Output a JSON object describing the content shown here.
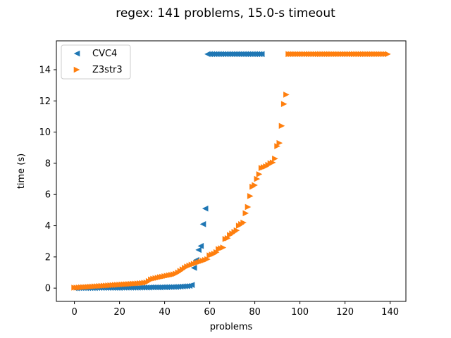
{
  "chart_data": {
    "type": "scatter",
    "title": "regex: 141 problems, 15.0-s timeout",
    "xlabel": "problems",
    "ylabel": "time (s)",
    "xlim": [
      -8,
      147
    ],
    "ylim": [
      -0.85,
      15.85
    ],
    "xticks": [
      0,
      20,
      40,
      60,
      80,
      100,
      120,
      140
    ],
    "yticks": [
      0,
      2,
      4,
      6,
      8,
      10,
      12,
      14
    ],
    "grid": false,
    "legend_position": "upper-left",
    "series": [
      {
        "name": "CVC4",
        "marker": "triangle-left",
        "color": "#1f77b4",
        "points": [
          [
            0,
            0.0
          ],
          [
            1,
            0.0
          ],
          [
            2,
            0.01
          ],
          [
            3,
            0.01
          ],
          [
            4,
            0.01
          ],
          [
            5,
            0.01
          ],
          [
            6,
            0.01
          ],
          [
            7,
            0.01
          ],
          [
            8,
            0.01
          ],
          [
            9,
            0.01
          ],
          [
            10,
            0.02
          ],
          [
            11,
            0.02
          ],
          [
            12,
            0.02
          ],
          [
            13,
            0.02
          ],
          [
            14,
            0.02
          ],
          [
            15,
            0.02
          ],
          [
            16,
            0.02
          ],
          [
            17,
            0.02
          ],
          [
            18,
            0.02
          ],
          [
            19,
            0.02
          ],
          [
            20,
            0.02
          ],
          [
            21,
            0.03
          ],
          [
            22,
            0.03
          ],
          [
            23,
            0.03
          ],
          [
            24,
            0.03
          ],
          [
            25,
            0.03
          ],
          [
            26,
            0.03
          ],
          [
            27,
            0.03
          ],
          [
            28,
            0.03
          ],
          [
            29,
            0.04
          ],
          [
            30,
            0.04
          ],
          [
            31,
            0.04
          ],
          [
            32,
            0.04
          ],
          [
            33,
            0.04
          ],
          [
            34,
            0.05
          ],
          [
            35,
            0.05
          ],
          [
            36,
            0.05
          ],
          [
            37,
            0.05
          ],
          [
            38,
            0.05
          ],
          [
            39,
            0.06
          ],
          [
            40,
            0.06
          ],
          [
            41,
            0.06
          ],
          [
            42,
            0.07
          ],
          [
            43,
            0.07
          ],
          [
            44,
            0.08
          ],
          [
            45,
            0.08
          ],
          [
            46,
            0.09
          ],
          [
            47,
            0.1
          ],
          [
            48,
            0.11
          ],
          [
            49,
            0.12
          ],
          [
            50,
            0.13
          ],
          [
            51,
            0.15
          ],
          [
            52,
            0.2
          ],
          [
            53,
            1.3
          ],
          [
            54,
            1.8
          ],
          [
            55,
            2.45
          ],
          [
            56,
            2.7
          ],
          [
            57,
            4.1
          ],
          [
            58,
            5.1
          ],
          [
            59,
            15.0
          ],
          [
            60,
            15.0
          ],
          [
            61,
            15.0
          ],
          [
            62,
            15.0
          ],
          [
            63,
            15.0
          ],
          [
            64,
            15.0
          ],
          [
            65,
            15.0
          ],
          [
            66,
            15.0
          ],
          [
            67,
            15.0
          ],
          [
            68,
            15.0
          ],
          [
            69,
            15.0
          ],
          [
            70,
            15.0
          ],
          [
            71,
            15.0
          ],
          [
            72,
            15.0
          ],
          [
            73,
            15.0
          ],
          [
            74,
            15.0
          ],
          [
            75,
            15.0
          ],
          [
            76,
            15.0
          ],
          [
            77,
            15.0
          ],
          [
            78,
            15.0
          ],
          [
            79,
            15.0
          ],
          [
            80,
            15.0
          ],
          [
            81,
            15.0
          ],
          [
            82,
            15.0
          ],
          [
            83,
            15.0
          ]
        ]
      },
      {
        "name": "Z3str3",
        "marker": "triangle-right",
        "color": "#ff7f0e",
        "points": [
          [
            0,
            0.03
          ],
          [
            1,
            0.03
          ],
          [
            2,
            0.04
          ],
          [
            3,
            0.05
          ],
          [
            4,
            0.06
          ],
          [
            5,
            0.07
          ],
          [
            6,
            0.08
          ],
          [
            7,
            0.09
          ],
          [
            8,
            0.1
          ],
          [
            9,
            0.11
          ],
          [
            10,
            0.12
          ],
          [
            11,
            0.13
          ],
          [
            12,
            0.14
          ],
          [
            13,
            0.15
          ],
          [
            14,
            0.16
          ],
          [
            15,
            0.17
          ],
          [
            16,
            0.18
          ],
          [
            17,
            0.19
          ],
          [
            18,
            0.2
          ],
          [
            19,
            0.21
          ],
          [
            20,
            0.22
          ],
          [
            21,
            0.23
          ],
          [
            22,
            0.24
          ],
          [
            23,
            0.25
          ],
          [
            24,
            0.26
          ],
          [
            25,
            0.27
          ],
          [
            26,
            0.28
          ],
          [
            27,
            0.29
          ],
          [
            28,
            0.3
          ],
          [
            29,
            0.31
          ],
          [
            30,
            0.32
          ],
          [
            31,
            0.34
          ],
          [
            32,
            0.36
          ],
          [
            33,
            0.45
          ],
          [
            34,
            0.55
          ],
          [
            35,
            0.6
          ],
          [
            36,
            0.63
          ],
          [
            37,
            0.66
          ],
          [
            38,
            0.7
          ],
          [
            39,
            0.73
          ],
          [
            40,
            0.76
          ],
          [
            41,
            0.79
          ],
          [
            42,
            0.82
          ],
          [
            43,
            0.85
          ],
          [
            44,
            0.88
          ],
          [
            45,
            0.92
          ],
          [
            46,
            1.0
          ],
          [
            47,
            1.1
          ],
          [
            48,
            1.2
          ],
          [
            49,
            1.3
          ],
          [
            50,
            1.38
          ],
          [
            51,
            1.44
          ],
          [
            52,
            1.5
          ],
          [
            53,
            1.55
          ],
          [
            54,
            1.6
          ],
          [
            55,
            1.65
          ],
          [
            56,
            1.7
          ],
          [
            57,
            1.75
          ],
          [
            58,
            1.8
          ],
          [
            59,
            1.85
          ],
          [
            60,
            2.1
          ],
          [
            61,
            2.15
          ],
          [
            62,
            2.2
          ],
          [
            63,
            2.3
          ],
          [
            64,
            2.5
          ],
          [
            65,
            2.55
          ],
          [
            66,
            2.6
          ],
          [
            67,
            3.15
          ],
          [
            68,
            3.2
          ],
          [
            69,
            3.4
          ],
          [
            70,
            3.5
          ],
          [
            71,
            3.6
          ],
          [
            72,
            3.7
          ],
          [
            73,
            4.0
          ],
          [
            74,
            4.1
          ],
          [
            75,
            4.2
          ],
          [
            76,
            4.8
          ],
          [
            77,
            5.2
          ],
          [
            78,
            5.9
          ],
          [
            79,
            6.5
          ],
          [
            80,
            6.6
          ],
          [
            81,
            7.0
          ],
          [
            82,
            7.3
          ],
          [
            83,
            7.7
          ],
          [
            84,
            7.75
          ],
          [
            85,
            7.8
          ],
          [
            86,
            7.9
          ],
          [
            87,
            8.0
          ],
          [
            88,
            8.05
          ],
          [
            89,
            8.3
          ],
          [
            90,
            9.1
          ],
          [
            91,
            9.3
          ],
          [
            92,
            10.4
          ],
          [
            93,
            11.8
          ],
          [
            94,
            12.4
          ],
          [
            95,
            15.0
          ],
          [
            96,
            15.0
          ],
          [
            97,
            15.0
          ],
          [
            98,
            15.0
          ],
          [
            99,
            15.0
          ],
          [
            100,
            15.0
          ],
          [
            101,
            15.0
          ],
          [
            102,
            15.0
          ],
          [
            103,
            15.0
          ],
          [
            104,
            15.0
          ],
          [
            105,
            15.0
          ],
          [
            106,
            15.0
          ],
          [
            107,
            15.0
          ],
          [
            108,
            15.0
          ],
          [
            109,
            15.0
          ],
          [
            110,
            15.0
          ],
          [
            111,
            15.0
          ],
          [
            112,
            15.0
          ],
          [
            113,
            15.0
          ],
          [
            114,
            15.0
          ],
          [
            115,
            15.0
          ],
          [
            116,
            15.0
          ],
          [
            117,
            15.0
          ],
          [
            118,
            15.0
          ],
          [
            119,
            15.0
          ],
          [
            120,
            15.0
          ],
          [
            121,
            15.0
          ],
          [
            122,
            15.0
          ],
          [
            123,
            15.0
          ],
          [
            124,
            15.0
          ],
          [
            125,
            15.0
          ],
          [
            126,
            15.0
          ],
          [
            127,
            15.0
          ],
          [
            128,
            15.0
          ],
          [
            129,
            15.0
          ],
          [
            130,
            15.0
          ],
          [
            131,
            15.0
          ],
          [
            132,
            15.0
          ],
          [
            133,
            15.0
          ],
          [
            134,
            15.0
          ],
          [
            135,
            15.0
          ],
          [
            136,
            15.0
          ],
          [
            137,
            15.0
          ],
          [
            138,
            15.0
          ],
          [
            139,
            15.0
          ]
        ]
      }
    ]
  }
}
